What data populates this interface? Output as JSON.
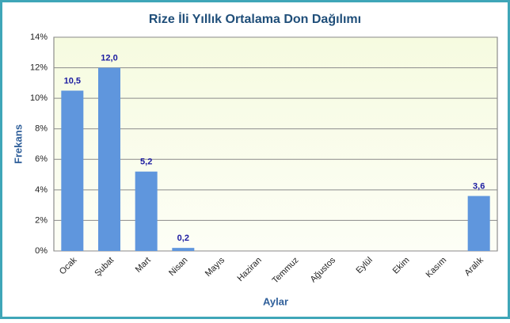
{
  "chart_data": {
    "type": "bar",
    "title": "Rize İli Yıllık Ortalama Don Dağılımı",
    "x_label": "Aylar",
    "y_label": "Frekans",
    "categories": [
      "Ocak",
      "Şubat",
      "Mart",
      "Nisan",
      "Mayıs",
      "Haziran",
      "Temmuz",
      "Ağustos",
      "Eylül",
      "Ekim",
      "Kasım",
      "Aralık"
    ],
    "values": [
      10.5,
      12.0,
      5.2,
      0.2,
      0,
      0,
      0,
      0,
      0,
      0,
      0,
      3.6
    ],
    "value_labels": [
      "10,5",
      "12,0",
      "5,2",
      "0,2",
      null,
      null,
      null,
      null,
      null,
      null,
      null,
      "3,6"
    ],
    "color": "#5f96dd",
    "ylim": [
      0,
      14
    ],
    "yticks": [
      {
        "value": 0,
        "label": "0%"
      },
      {
        "value": 2,
        "label": "2%"
      },
      {
        "value": 4,
        "label": "4%"
      },
      {
        "value": 6,
        "label": "6%"
      },
      {
        "value": 8,
        "label": "8%"
      },
      {
        "value": 10,
        "label": "10%"
      },
      {
        "value": 12,
        "label": "12%"
      },
      {
        "value": 14,
        "label": "14%"
      }
    ],
    "grid": true
  }
}
